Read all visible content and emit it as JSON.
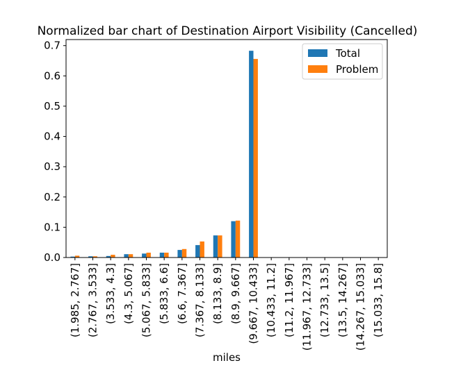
{
  "chart_data": {
    "type": "bar",
    "title": "Normalized bar chart of Destination Airport Visibility (Cancelled)",
    "xlabel": "miles",
    "ylabel": "",
    "ylim": [
      0,
      0.72
    ],
    "yticks": [
      "0.0",
      "0.1",
      "0.2",
      "0.3",
      "0.4",
      "0.5",
      "0.6",
      "0.7"
    ],
    "categories": [
      "(1.985, 2.767]",
      "(2.767, 3.533]",
      "(3.533, 4.3]",
      "(4.3, 5.067]",
      "(5.067, 5.833]",
      "(5.833, 6.6]",
      "(6.6, 7.367]",
      "(7.367, 8.133]",
      "(8.133, 8.9]",
      "(8.9, 9.667]",
      "(9.667, 10.433]",
      "(10.433, 11.2]",
      "(11.2, 11.967]",
      "(11.967, 12.733]",
      "(12.733, 13.5]",
      "(13.5, 14.267]",
      "(14.267, 15.033]",
      "(15.033, 15.8]"
    ],
    "series": [
      {
        "name": "Total",
        "color": "#1f77b4",
        "values": [
          0.003,
          0.004,
          0.005,
          0.011,
          0.013,
          0.016,
          0.025,
          0.041,
          0.073,
          0.12,
          0.683,
          0,
          0,
          0,
          0,
          0,
          0,
          0
        ]
      },
      {
        "name": "Problem",
        "color": "#ff7f0e",
        "values": [
          0.006,
          0.004,
          0.009,
          0.011,
          0.016,
          0.016,
          0.028,
          0.053,
          0.073,
          0.122,
          0.656,
          0,
          0,
          0,
          0,
          0,
          0,
          0
        ]
      }
    ],
    "legend": "top-right",
    "grid": false
  }
}
